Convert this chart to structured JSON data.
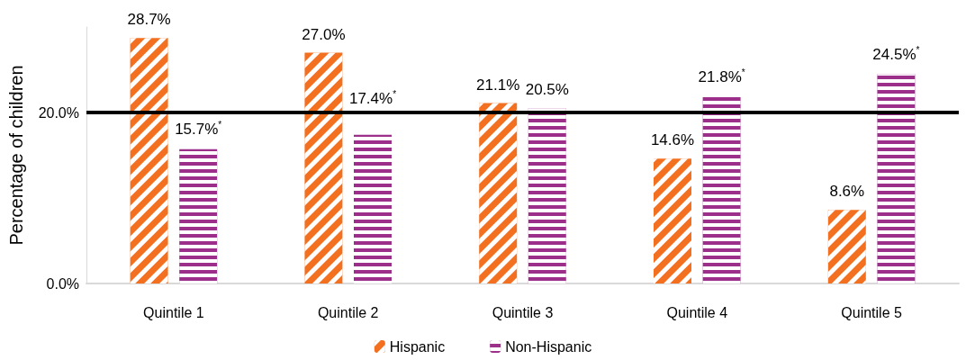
{
  "chart_data": {
    "type": "bar",
    "ylabel": "Percentage of children",
    "categories": [
      "Quintile 1",
      "Quintile 2",
      "Quintile 3",
      "Quintile 4",
      "Quintile 5"
    ],
    "series": [
      {
        "name": "Hispanic",
        "color": "#f37021",
        "values": [
          28.7,
          27.0,
          21.1,
          14.6,
          8.6
        ],
        "value_labels": [
          "28.7%",
          "27.0%",
          "21.1%",
          "14.6%",
          "8.6%"
        ]
      },
      {
        "name": "Non-Hispanic",
        "color": "#9b2f8a",
        "values": [
          15.7,
          17.4,
          20.5,
          21.8,
          24.5
        ],
        "value_labels": [
          "15.7%$^{*}$",
          "17.4%$^{*}$",
          "20.5%",
          "21.8%$^{*}$",
          "24.5%$^{*}$"
        ]
      }
    ],
    "ylim": [
      0,
      30
    ],
    "yticks": [
      {
        "value": 0,
        "label": "0.0%"
      },
      {
        "value": 20,
        "label": "20.0%"
      }
    ],
    "ref_lines": [
      {
        "axis": "y",
        "value": 20,
        "color": "#000000",
        "line_style": "solid"
      }
    ],
    "legend": "bottom"
  }
}
